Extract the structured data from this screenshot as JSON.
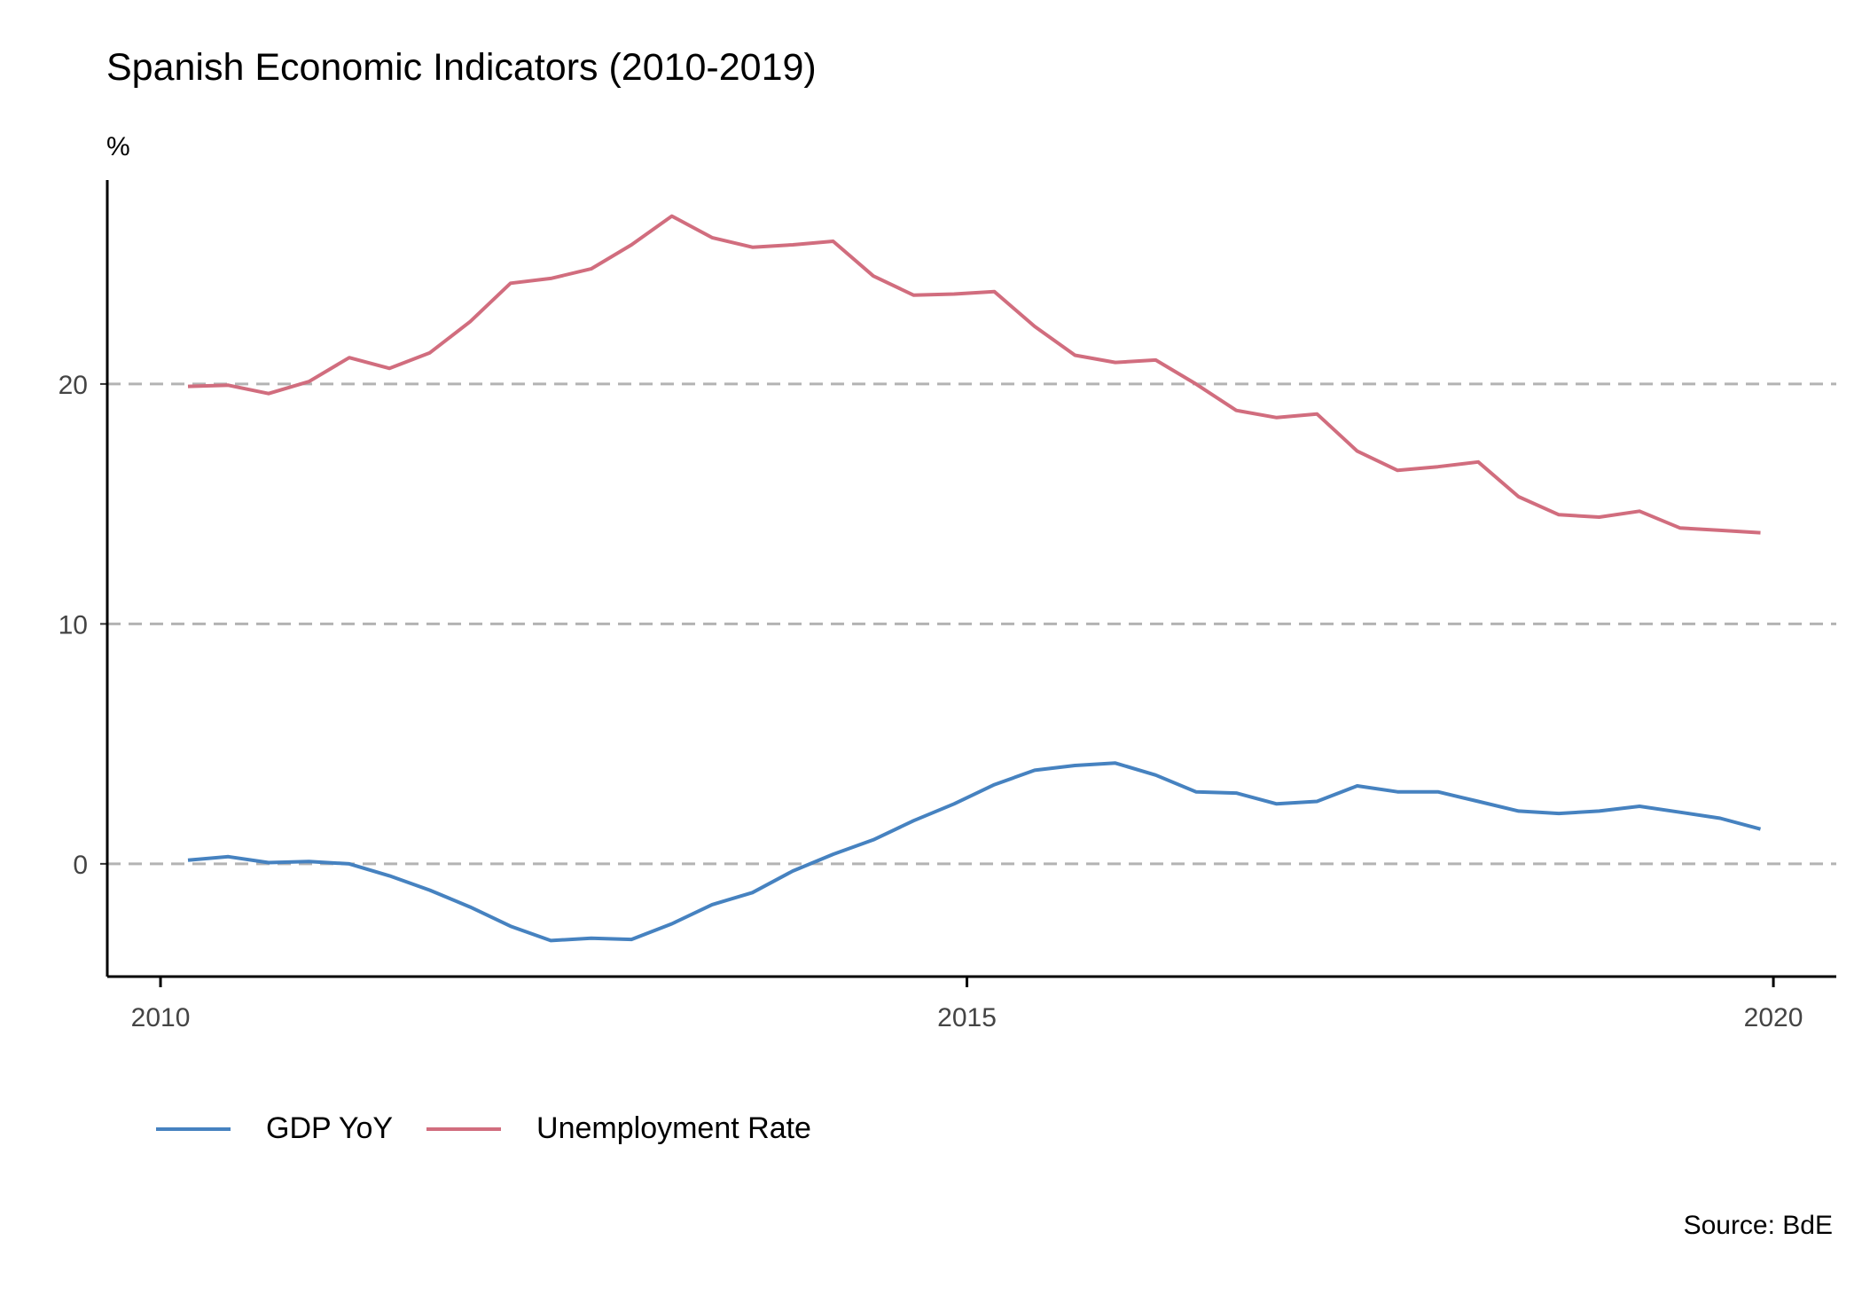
{
  "title": "Spanish Economic Indicators (2010-2019)",
  "source": "Source: BdE",
  "chart_data": {
    "type": "line",
    "ylabel": "%",
    "xlabel": "",
    "ylim": [
      -4.7,
      28.5
    ],
    "xlim": [
      2009.67,
      2020.39
    ],
    "x_ticks": [
      2010,
      2015,
      2020
    ],
    "y_ticks": [
      0,
      10,
      20
    ],
    "grid": "horizontal dashed",
    "legend_position": "bottom-left",
    "x": [
      2010.17,
      2010.42,
      2010.67,
      2010.92,
      2011.17,
      2011.42,
      2011.67,
      2011.92,
      2012.17,
      2012.42,
      2012.67,
      2012.92,
      2013.17,
      2013.42,
      2013.67,
      2013.92,
      2014.17,
      2014.42,
      2014.67,
      2014.92,
      2015.17,
      2015.42,
      2015.67,
      2015.92,
      2016.17,
      2016.42,
      2016.67,
      2016.92,
      2017.17,
      2017.42,
      2017.67,
      2017.92,
      2018.17,
      2018.42,
      2018.67,
      2018.92,
      2019.17,
      2019.42,
      2019.67,
      2019.92
    ],
    "series": [
      {
        "name": "GDP YoY",
        "color": "#4682c0",
        "values": [
          0.15,
          0.3,
          0.05,
          0.1,
          0.0,
          -0.5,
          -1.1,
          -1.8,
          -2.6,
          -3.2,
          -3.1,
          -3.15,
          -2.5,
          -1.7,
          -1.2,
          -0.3,
          0.4,
          1.0,
          1.8,
          2.5,
          3.3,
          3.9,
          4.1,
          4.2,
          3.7,
          3.0,
          2.95,
          2.5,
          2.6,
          3.25,
          3.0,
          3.0,
          2.6,
          2.2,
          2.1,
          2.2,
          2.4,
          2.15,
          1.9,
          1.45
        ]
      },
      {
        "name": "Unemployment Rate",
        "color": "#d16d7e",
        "values": [
          19.9,
          19.95,
          19.6,
          20.1,
          21.1,
          20.65,
          21.3,
          22.6,
          24.2,
          24.4,
          24.8,
          25.8,
          27.0,
          26.1,
          25.7,
          25.8,
          25.95,
          24.5,
          23.7,
          23.75,
          23.85,
          22.4,
          21.2,
          20.9,
          21.0,
          20.0,
          18.9,
          18.6,
          18.75,
          17.2,
          16.4,
          16.55,
          16.75,
          15.3,
          14.55,
          14.45,
          14.7,
          14.0,
          13.9,
          13.8
        ]
      }
    ]
  }
}
